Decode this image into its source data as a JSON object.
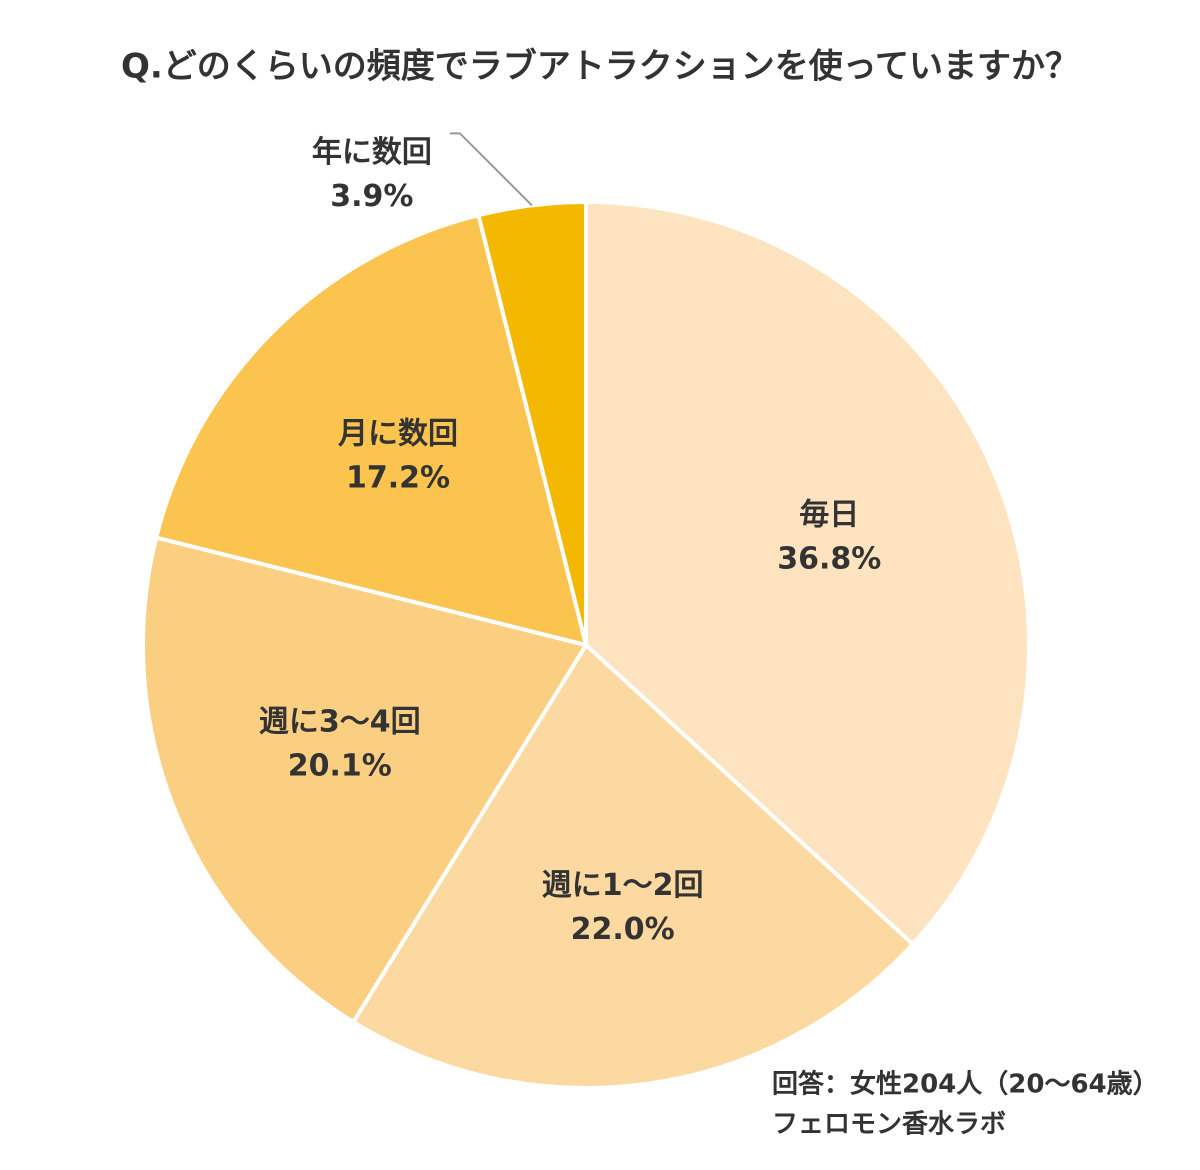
{
  "chart_data": {
    "type": "pie",
    "title": "Q.どのくらいの頻度でラブアトラクションを使っていますか？",
    "categories": [
      "毎日",
      "週に1〜2回",
      "週に3〜4回",
      "月に数回",
      "年に数回"
    ],
    "values": [
      36.8,
      22.0,
      20.1,
      17.2,
      3.9
    ],
    "value_labels": [
      "36.8%",
      "22.0%",
      "20.1%",
      "17.2%",
      "3.9%"
    ],
    "colors": [
      "#fde3bf",
      "#fcd9a0",
      "#fbcf82",
      "#fbc44f",
      "#f5b800"
    ],
    "notes": [
      "回答：女性204人（20〜64歳）",
      "フェロモン香水ラボ"
    ]
  }
}
